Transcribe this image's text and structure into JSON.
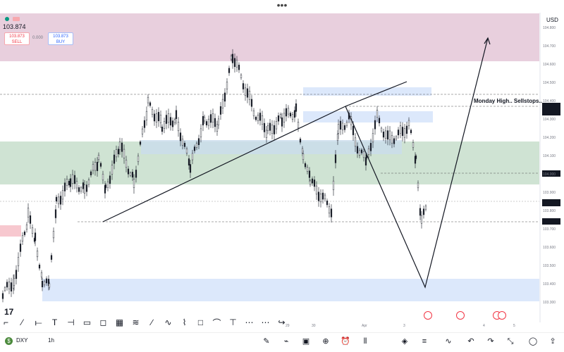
{
  "header": {
    "menu_dots": "•••",
    "current_price": "103.874",
    "currency": "USD",
    "sell_price": "103.873",
    "sell_label": "SELL",
    "buy_price": "103.873",
    "buy_label": "BUY",
    "spread": "0.000"
  },
  "annotation": "Monday High.. Sellstops..",
  "colors": {
    "supply_zone": "#e8cfdd",
    "demand_zone": "#cfe3d3",
    "blue_zone": "#dce8fb",
    "candle": "#131722",
    "grid_dash": "#555555"
  },
  "toolbar": {
    "tools": [
      "cursor-icon",
      "trendline-icon",
      "horizontal-line-icon",
      "text-icon",
      "price-range-icon",
      "rectangle-icon",
      "gann-box-icon",
      "grid-icon",
      "pitchfork-icon",
      "pen-icon",
      "wave-icon",
      "path-icon",
      "callout-icon",
      "brush-icon",
      "measure-icon",
      "long-position-icon",
      "short-position-icon",
      "curve-icon"
    ]
  },
  "bottom": {
    "symbol": "DXY",
    "interval": "1h",
    "icons": [
      "pencil-icon",
      "chart-type-icon",
      "layout-icon",
      "add-icon",
      "alarm-icon",
      "candles-icon",
      "layers-icon",
      "indicators-icon",
      "chart-style-icon",
      "undo-icon",
      "redo-icon",
      "fullscreen-icon",
      "account-icon",
      "share-icon"
    ]
  },
  "time_axis": [
    "29",
    "30",
    "Apr",
    "3",
    "4",
    "5"
  ],
  "price_axis": [
    "104.800",
    "104.700",
    "104.600",
    "104.500",
    "104.400",
    "104.300",
    "104.200",
    "104.100",
    "104.000",
    "103.900",
    "103.800",
    "103.700",
    "103.600",
    "103.500",
    "103.400",
    "103.300"
  ]
}
